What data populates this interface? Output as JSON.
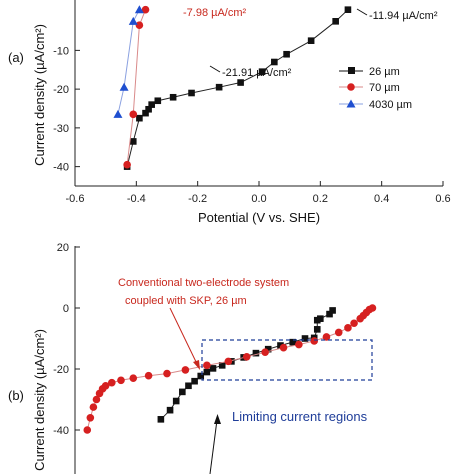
{
  "colors": {
    "series_26": "#111111",
    "series_70": "#d62020",
    "series_4030": "#1f4fd0",
    "series_70_line": "#d98a8a",
    "annotation_red": "#c8281e",
    "annotation_blue": "#1f3d99"
  },
  "chart_data": [
    {
      "type": "line",
      "panel": "(a)",
      "xlabel": "Potential (V vs. SHE)",
      "ylabel": "Current density (µA/cm²)",
      "xlim": [
        -0.6,
        0.6
      ],
      "ylim": [
        -45,
        3
      ],
      "xticks": [
        "-0.6",
        "-0.4",
        "-0.2",
        "0.0",
        "0.2",
        "0.4",
        "0.6"
      ],
      "yticks": [
        "-40",
        "-30",
        "-20",
        "-10"
      ],
      "legend": {
        "placement": "bottom-right",
        "entries": [
          "26 µm",
          "70 µm",
          "4030 µm"
        ]
      },
      "series": [
        {
          "name": "26 µm",
          "marker": "square",
          "x": [
            -0.43,
            -0.41,
            -0.39,
            -0.37,
            -0.36,
            -0.35,
            -0.33,
            -0.28,
            -0.22,
            -0.13,
            -0.06,
            0.01,
            0.05,
            0.09,
            0.17,
            0.25,
            0.29
          ],
          "y": [
            -40,
            -33.5,
            -27.5,
            -26.2,
            -25.2,
            -24.0,
            -23.0,
            -22.1,
            -21.0,
            -19.5,
            -18.3,
            -15.5,
            -13.0,
            -11.0,
            -7.5,
            -2.5,
            0.5
          ]
        },
        {
          "name": "70 µm",
          "marker": "circle",
          "x": [
            -0.43,
            -0.41,
            -0.39,
            -0.37
          ],
          "y": [
            -39.5,
            -26.5,
            -3.5,
            0.5
          ]
        },
        {
          "name": "4030 µm",
          "marker": "triangle",
          "x": [
            -0.46,
            -0.44,
            -0.41,
            -0.39
          ],
          "y": [
            -26.5,
            -19.5,
            -2.5,
            0.5
          ]
        }
      ],
      "annotations": [
        {
          "text": "-7.98 µA/cm²",
          "x": -0.32,
          "y": -1.4,
          "color": "red"
        },
        {
          "text": "-11.94 µA/cm²",
          "x": 0.29,
          "y": -5.0,
          "color": "black"
        },
        {
          "text": "-21.91 µA/cm²",
          "x": -0.17,
          "y": -24.6,
          "color": "black"
        }
      ]
    },
    {
      "type": "line",
      "panel": "(b)",
      "ylabel": "Current density (µA/cm²)",
      "xlim": [
        -0.6,
        0.6
      ],
      "ylim": [
        -50,
        20
      ],
      "yticks": [
        "20",
        "0",
        "-20",
        "-40"
      ],
      "series": [
        {
          "marker": "square",
          "x": [
            -0.32,
            -0.29,
            -0.27,
            -0.25,
            -0.23,
            -0.21,
            -0.19,
            -0.17,
            -0.15,
            -0.12,
            -0.09,
            -0.05,
            -0.01,
            0.03,
            0.07,
            0.11,
            0.15,
            0.18,
            0.19,
            0.19,
            0.2,
            0.23,
            0.24
          ],
          "y": [
            -36.5,
            -33.5,
            -30.5,
            -27.5,
            -25.5,
            -24.0,
            -22.3,
            -21.0,
            -19.8,
            -18.8,
            -17.5,
            -16.2,
            -14.8,
            -13.5,
            -12.3,
            -11.2,
            -10.0,
            -9.8,
            -7.0,
            -4.0,
            -3.5,
            -2.0,
            -0.8
          ]
        },
        {
          "marker": "circle",
          "x": [
            -0.56,
            -0.55,
            -0.54,
            -0.53,
            -0.52,
            -0.51,
            -0.5,
            -0.48,
            -0.45,
            -0.41,
            -0.36,
            -0.3,
            -0.24,
            -0.17,
            -0.1,
            -0.04,
            0.02,
            0.08,
            0.13,
            0.18,
            0.22,
            0.26,
            0.29,
            0.31,
            0.33,
            0.34,
            0.35,
            0.36,
            0.37
          ],
          "y": [
            -40.0,
            -36.0,
            -32.5,
            -30.0,
            -28.0,
            -26.5,
            -25.5,
            -24.5,
            -23.7,
            -23.0,
            -22.2,
            -21.5,
            -20.3,
            -18.8,
            -17.5,
            -16.0,
            -14.5,
            -13.0,
            -12.0,
            -10.8,
            -9.5,
            -8.0,
            -6.5,
            -5.0,
            -3.5,
            -2.5,
            -1.5,
            -0.5,
            0.0
          ]
        }
      ],
      "annotations": [
        {
          "text": "Conventional two-electrode system",
          "color": "red"
        },
        {
          "text": "coupled with SKP, 26 µm",
          "color": "red"
        },
        {
          "text": "Limiting current regions",
          "color": "blue"
        }
      ]
    }
  ]
}
